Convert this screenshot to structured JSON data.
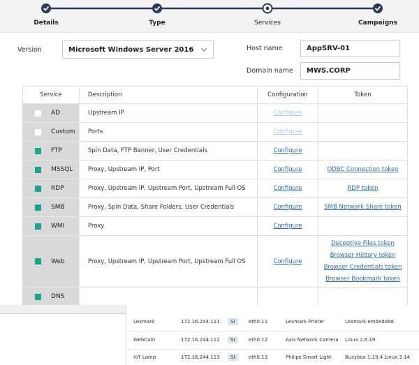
{
  "stepper": {
    "steps": [
      {
        "label": "Details",
        "state": "done"
      },
      {
        "label": "Type",
        "state": "done"
      },
      {
        "label": "Services",
        "state": "current"
      },
      {
        "label": "Campaigns",
        "state": "done"
      }
    ]
  },
  "form": {
    "version_label": "Version",
    "version_value": "Microsoft Windows Server 2016",
    "host_label": "Host name",
    "host_value": "AppSRV-01",
    "domain_label": "Domain name",
    "domain_value": "MWS.CORP"
  },
  "services_table": {
    "headers": [
      "Service",
      "Description",
      "Configuration",
      "Token"
    ],
    "rows": [
      {
        "service": "AD",
        "description": "Upstream IP",
        "configuration": "Configure",
        "enabled": false,
        "checked": false,
        "tokens": []
      },
      {
        "service": "Custom",
        "description": "Ports",
        "configuration": "Configure",
        "enabled": false,
        "checked": false,
        "tokens": []
      },
      {
        "service": "FTP",
        "description": "Spin Data, FTP Banner, User Credentials",
        "configuration": "Configure",
        "enabled": true,
        "checked": true,
        "tokens": []
      },
      {
        "service": "MSSQL",
        "description": "Proxy, Upstream IP, Port",
        "configuration": "Configure",
        "enabled": true,
        "checked": true,
        "tokens": [
          "ODBC Connection token"
        ]
      },
      {
        "service": "RDP",
        "description": "Proxy, Upstream IP, Upstream Port, Upstream Full OS",
        "configuration": "Configure",
        "enabled": true,
        "checked": true,
        "tokens": [
          "RDP token"
        ]
      },
      {
        "service": "SMB",
        "description": "Proxy, Spin Data, Share Folders, User Credentials",
        "configuration": "Configure",
        "enabled": true,
        "checked": true,
        "tokens": [
          "SMB Network Share token"
        ]
      },
      {
        "service": "WMI",
        "description": "Proxy",
        "configuration": "Configure",
        "enabled": true,
        "checked": true,
        "tokens": []
      },
      {
        "service": "Web",
        "description": "Proxy, Upstream IP, Upstream Port, Upstream Full OS",
        "configuration": "Configure",
        "enabled": true,
        "checked": true,
        "tokens": [
          "Deceptive Files token",
          "Browser History token",
          "Browser Credentials token",
          "Browser Bookmark token"
        ]
      },
      {
        "service": "DNS",
        "description": "",
        "configuration": "",
        "enabled": true,
        "checked": true,
        "tokens": []
      }
    ]
  },
  "devices_table": {
    "rows": [
      [
        "Lexmark",
        "172.16.244.111",
        "SI",
        "eth0:11",
        "Lexmark Printer",
        "Lexmark embedded"
      ],
      [
        "WebCam",
        "172.16.244.112",
        "SI",
        "eth0:12",
        "Axis Network Camera",
        "Linux 2.6.19"
      ],
      [
        "IoT Lamp",
        "172.16.244.113",
        "SI",
        "eth0:13",
        "Philips Smart Light",
        "Busybox 1.19.4 Linux 3.14"
      ]
    ]
  }
}
